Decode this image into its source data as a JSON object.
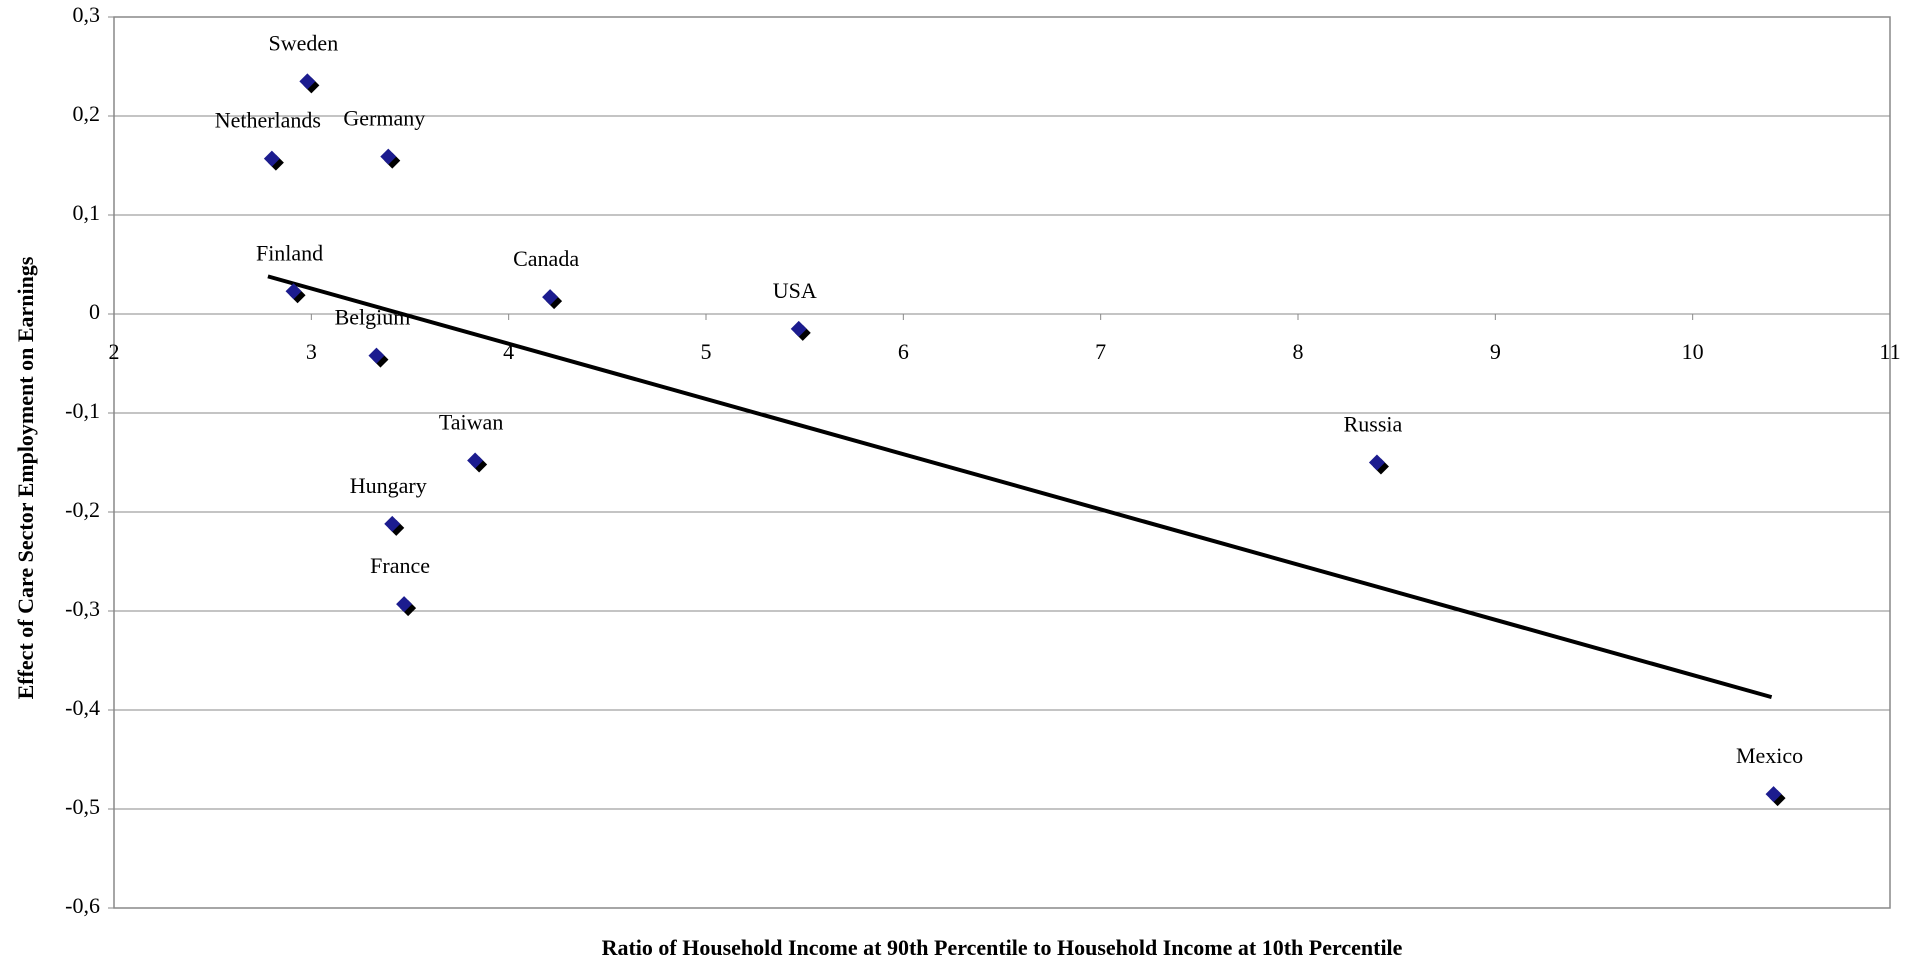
{
  "chart_data": {
    "type": "scatter",
    "x_label": "Ratio of Household Income at 90th Percentile to Household Income at 10th Percentile",
    "y_label": "Effect of Care Sector Employment on Earnings",
    "labels": [
      "Sweden",
      "Netherlands",
      "Germany",
      "Finland",
      "Canada",
      "USA",
      "Belgium",
      "Taiwan",
      "Hungary",
      "France",
      "Russia",
      "Mexico"
    ],
    "x": [
      2.98,
      2.8,
      3.39,
      2.91,
      4.21,
      5.47,
      3.33,
      3.83,
      3.41,
      3.47,
      8.4,
      10.41
    ],
    "y": [
      0.235,
      0.157,
      0.159,
      0.023,
      0.017,
      -0.015,
      -0.042,
      -0.148,
      -0.212,
      -0.293,
      -0.15,
      -0.485
    ],
    "color": "#1c1c8f",
    "trendline": {
      "x": [
        2.78,
        10.4
      ],
      "y": [
        0.038,
        -0.387
      ],
      "color": "#000000"
    },
    "xlim": [
      2,
      11
    ],
    "ylim": [
      -0.6,
      0.3
    ],
    "xticks": [
      2,
      3,
      4,
      5,
      6,
      7,
      8,
      9,
      10,
      11
    ],
    "yticks": [
      {
        "value": -0.6,
        "label": "-0,6"
      },
      {
        "value": -0.5,
        "label": "-0,5"
      },
      {
        "value": -0.4,
        "label": "-0,4"
      },
      {
        "value": -0.3,
        "label": "-0,3"
      },
      {
        "value": -0.2,
        "label": "-0,2"
      },
      {
        "value": -0.1,
        "label": "-0,1"
      },
      0,
      {
        "value": 0.1,
        "label": "0,1"
      },
      {
        "value": 0.2,
        "label": "0,2"
      },
      {
        "value": 0.3,
        "label": "0,3"
      }
    ],
    "grid": true
  }
}
